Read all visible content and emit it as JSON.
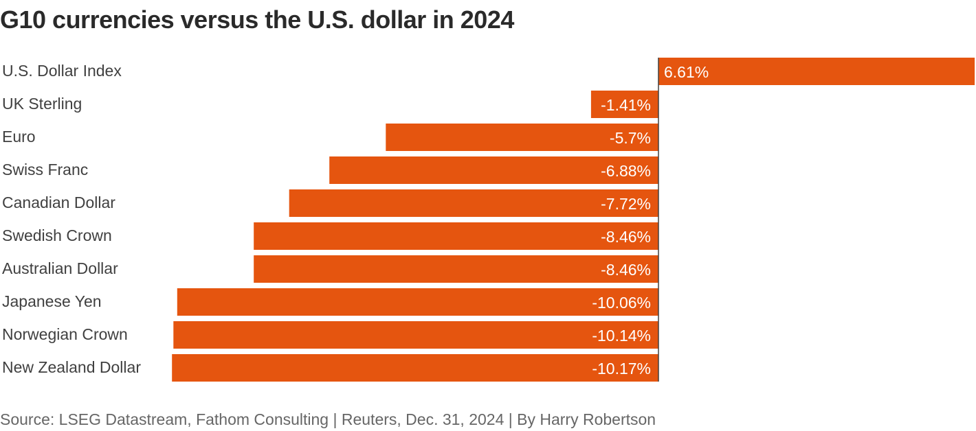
{
  "title": "G10 currencies versus the U.S. dollar in 2024",
  "source": "Source: LSEG Datastream, Fathom Consulting | Reuters, Dec. 31, 2024 | By Harry Robertson",
  "colors": {
    "bar": "#e5550f",
    "axis": "#404040"
  },
  "chart_data": {
    "type": "bar",
    "orientation": "horizontal",
    "categories": [
      "U.S. Dollar Index",
      "UK Sterling",
      "Euro",
      "Swiss Franc",
      "Canadian Dollar",
      "Swedish Crown",
      "Australian Dollar",
      "Japanese Yen",
      "Norwegian Crown",
      "New Zealand Dollar"
    ],
    "values": [
      6.61,
      -1.41,
      -5.7,
      -6.88,
      -7.72,
      -8.46,
      -8.46,
      -10.06,
      -10.14,
      -10.17
    ],
    "labels": [
      "6.61%",
      "-1.41%",
      "-5.7%",
      "-6.88%",
      "-7.72%",
      "-8.46%",
      "-8.46%",
      "-10.06%",
      "-10.14%",
      "-10.17%"
    ],
    "xlim": [
      -10.17,
      6.61
    ],
    "grid": false,
    "legend": "none"
  }
}
